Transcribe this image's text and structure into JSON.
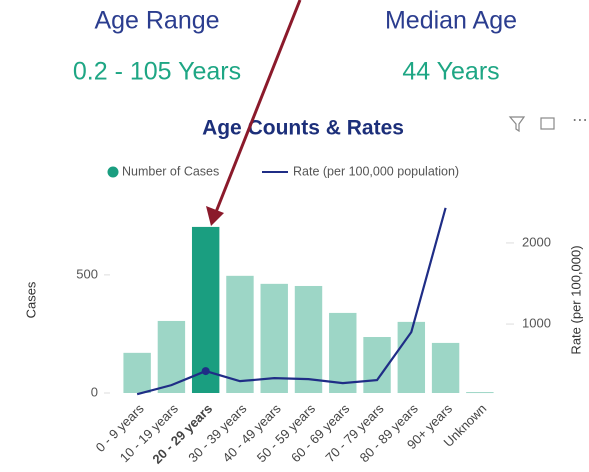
{
  "cards": [
    {
      "title": "Age Range",
      "value": "0.2 - 105 Years"
    },
    {
      "title": "Median Age",
      "value": "44 Years"
    }
  ],
  "chart_data": {
    "type": "combo",
    "title": "Age Counts & Rates",
    "categories": [
      "0 - 9 years",
      "10 - 19 years",
      "20 - 29 years",
      "30 - 39 years",
      "40 - 49 years",
      "50 - 59 years",
      "60 - 69 years",
      "70 - 79 years",
      "80 - 89 years",
      "90+ years",
      "Unknown"
    ],
    "highlight_index": 2,
    "series": [
      {
        "name": "Number of Cases",
        "type": "bar",
        "color": "#9dd6c6",
        "highlight_color": "#1a9e80",
        "values": [
          170,
          305,
          703,
          496,
          462,
          453,
          339,
          237,
          301,
          212,
          4
        ]
      },
      {
        "name": "Rate (per 100,000 population)",
        "type": "line",
        "axis": "y2",
        "color": "#1f2d86",
        "values": [
          136,
          247,
          420,
          296,
          333,
          321,
          272,
          309,
          901,
          2432,
          null
        ]
      }
    ],
    "ylabel": "Cases",
    "y2label": "Rate (per 100,000)",
    "ylim": [
      0,
      800
    ],
    "yticks": [
      0,
      500
    ],
    "y2lim": [
      150,
      2480
    ],
    "y2ticks": [
      1000,
      2000
    ],
    "grid": false,
    "legend": "top"
  }
}
